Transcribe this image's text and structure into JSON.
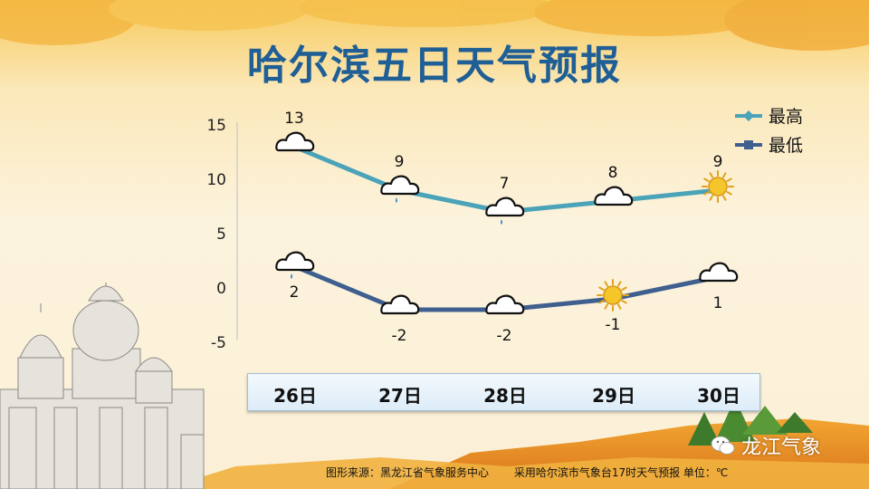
{
  "title": "哈尔滨五日天气预报",
  "chart_data": {
    "type": "line",
    "categories": [
      "26日",
      "27日",
      "28日",
      "29日",
      "30日"
    ],
    "series": [
      {
        "name": "最高",
        "values": [
          13,
          9,
          7,
          8,
          9
        ],
        "color": "#4aa3b8",
        "icons": [
          "cloud",
          "cloud-rain",
          "cloud-rain",
          "cloud",
          "sun"
        ]
      },
      {
        "name": "最低",
        "values": [
          2,
          -2,
          -2,
          -1,
          1
        ],
        "color": "#3f5f8f",
        "icons": [
          "cloud-rain",
          "cloud",
          "cloud",
          "sun",
          "cloud"
        ]
      }
    ],
    "ylim": [
      -5,
      15
    ],
    "yticks": [
      "15",
      "10",
      "5",
      "0",
      "-5"
    ],
    "legend_position": "top-right",
    "grid": false
  },
  "footer": {
    "source": "图形来源：黑龙江省气象服务中心",
    "note": "采用哈尔滨市气象台17时天气预报 单位：℃"
  },
  "brand": "龙江气象"
}
